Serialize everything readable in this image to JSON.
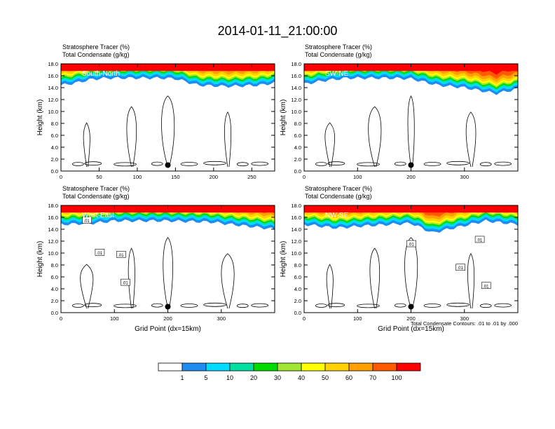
{
  "title": "2014-01-11_21:00:00",
  "panel_label_1": "Stratosphere Tracer   (%)",
  "panel_label_2": "Total Condensate   (g/kg)",
  "ylabel": "Height (km)",
  "xlabel": "Grid Point (dx=15km)",
  "contour_note": "Total Condensate Contours: .01 to .01 by .000",
  "contour_label": ".01",
  "colors": {
    "background": "#ffffff",
    "contour": "#000000",
    "levels": [
      "#ffffff",
      "#1e8cf0",
      "#00dcff",
      "#00e0a0",
      "#00dc00",
      "#a0e632",
      "#ffff00",
      "#ffd200",
      "#ffa000",
      "#ff5a00",
      "#ff0000"
    ]
  },
  "colorbar": {
    "labels": [
      "1",
      "5",
      "10",
      "20",
      "30",
      "40",
      "50",
      "60",
      "70",
      "100"
    ]
  },
  "chart_data": [
    {
      "type": "contour",
      "cross_section": "South-North",
      "title": "Stratosphere Tracer   (%)",
      "subtitle": "Total Condensate   (g/kg)",
      "xlabel": "",
      "ylabel": "Height (km)",
      "xlim": [
        0,
        280
      ],
      "ylim": [
        0,
        18
      ],
      "xticks": [
        "0",
        "50",
        "100",
        "150",
        "200",
        "250"
      ],
      "yticks": [
        "0.0",
        "2.0",
        "4.0",
        "6.0",
        "8.0",
        "10.0",
        "12.0",
        "14.0",
        "16.0",
        "18.0"
      ],
      "tropopause_km": [
        [
          0,
          15.2
        ],
        [
          20,
          15.6
        ],
        [
          40,
          16.2
        ],
        [
          60,
          16.4
        ],
        [
          100,
          16.4
        ],
        [
          130,
          16.4
        ],
        [
          150,
          16.3
        ],
        [
          180,
          15.2
        ],
        [
          220,
          15.0
        ],
        [
          260,
          15.2
        ],
        [
          280,
          15.6
        ]
      ],
      "marker": {
        "x": 140,
        "y": 1.0
      }
    },
    {
      "type": "contour",
      "cross_section": "SW-NE",
      "title": "Stratosphere Tracer   (%)",
      "subtitle": "Total Condensate   (g/kg)",
      "xlabel": "",
      "ylabel": "Height (km)",
      "xlim": [
        0,
        400
      ],
      "ylim": [
        0,
        18
      ],
      "xticks": [
        "0",
        "100",
        "200",
        "300"
      ],
      "yticks": [
        "0.0",
        "2.0",
        "4.0",
        "6.0",
        "8.0",
        "10.0",
        "12.0",
        "14.0",
        "16.0",
        "18.0"
      ],
      "tropopause_km": [
        [
          0,
          15.4
        ],
        [
          40,
          16.0
        ],
        [
          80,
          16.4
        ],
        [
          150,
          16.4
        ],
        [
          200,
          16.3
        ],
        [
          250,
          15.2
        ],
        [
          300,
          14.8
        ],
        [
          360,
          13.8
        ],
        [
          400,
          14.6
        ]
      ],
      "marker": {
        "x": 200,
        "y": 1.0
      }
    },
    {
      "type": "contour",
      "cross_section": "West-East",
      "title": "Stratosphere Tracer   (%)",
      "subtitle": "Total Condensate   (g/kg)",
      "xlabel": "Grid Point (dx=15km)",
      "ylabel": "Height (km)",
      "xlim": [
        0,
        400
      ],
      "ylim": [
        0,
        18
      ],
      "xticks": [
        "0",
        "100",
        "200",
        "300"
      ],
      "yticks": [
        "0.0",
        "2.0",
        "4.0",
        "6.0",
        "8.0",
        "10.0",
        "12.0",
        "14.0",
        "16.0",
        "18.0"
      ],
      "tropopause_km": [
        [
          0,
          15.6
        ],
        [
          60,
          15.8
        ],
        [
          100,
          16.2
        ],
        [
          200,
          16.2
        ],
        [
          280,
          16.0
        ],
        [
          340,
          15.4
        ],
        [
          400,
          14.8
        ]
      ],
      "marker": {
        "x": 200,
        "y": 1.0
      }
    },
    {
      "type": "contour",
      "cross_section": "NW-SE",
      "title": "Stratosphere Tracer   (%)",
      "subtitle": "Total Condensate   (g/kg)",
      "xlabel": "Grid Point (dx=15km)",
      "ylabel": "Height (km)",
      "xlim": [
        0,
        400
      ],
      "ylim": [
        0,
        18
      ],
      "xticks": [
        "0",
        "100",
        "200",
        "300"
      ],
      "yticks": [
        "0.0",
        "2.0",
        "4.0",
        "6.0",
        "8.0",
        "10.0",
        "12.0",
        "14.0",
        "16.0",
        "18.0"
      ],
      "tropopause_km": [
        [
          0,
          15.6
        ],
        [
          60,
          15.0
        ],
        [
          120,
          15.4
        ],
        [
          200,
          15.8
        ],
        [
          240,
          14.2
        ],
        [
          300,
          15.4
        ],
        [
          340,
          16.2
        ],
        [
          400,
          15.6
        ]
      ],
      "marker": {
        "x": 200,
        "y": 1.0
      }
    }
  ]
}
